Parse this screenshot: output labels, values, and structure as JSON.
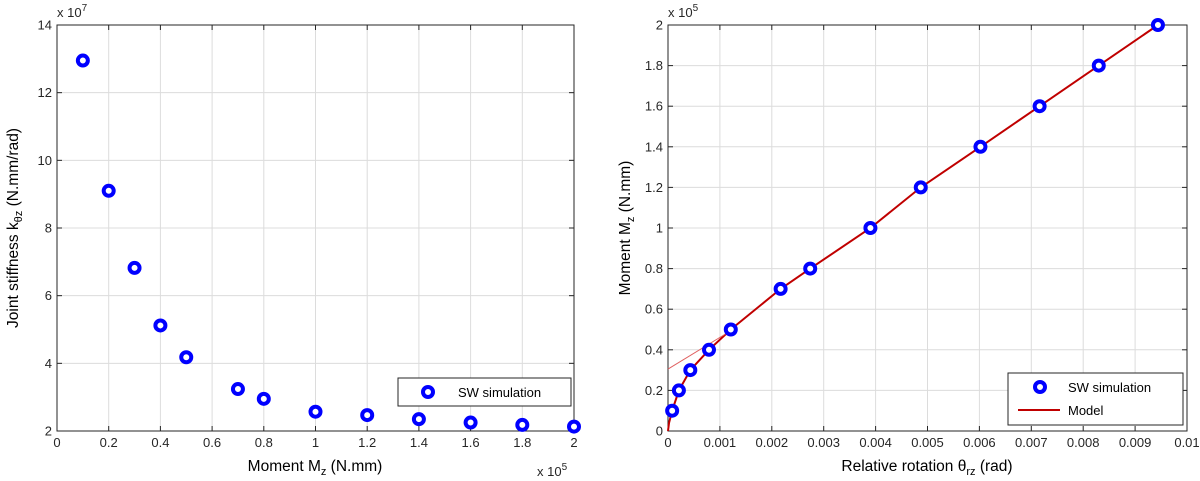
{
  "chart_data": [
    {
      "type": "scatter",
      "xlabel": "Moment M",
      "xlabel_sub": "z",
      "xlabel_unit": " (N.mm)",
      "ylabel": "Joint stiffness k",
      "ylabel_sub": "θz",
      "ylabel_unit": " (N.mm/rad)",
      "xlim": [
        0,
        200000
      ],
      "ylim": [
        20000000,
        140000000
      ],
      "x_ticks": [
        "0",
        "0.2",
        "0.4",
        "0.6",
        "0.8",
        "1",
        "1.2",
        "1.4",
        "1.6",
        "1.8",
        "2"
      ],
      "y_ticks": [
        "2",
        "4",
        "6",
        "8",
        "10",
        "12",
        "14"
      ],
      "x_exponent": "x 10",
      "x_exponent_power": "5",
      "y_exponent": "x 10",
      "y_exponent_power": "7",
      "grid": true,
      "legend_position": "bottom-right",
      "series": [
        {
          "name": "SW simulation",
          "marker": "circle",
          "color": "#0000ff",
          "x": [
            10000,
            20000,
            30000,
            40000,
            50000,
            70000,
            80000,
            100000,
            120000,
            140000,
            160000,
            180000,
            200000
          ],
          "y": [
            129500000,
            91000000,
            68200000,
            51200000,
            41800000,
            32400000,
            29500000,
            25700000,
            24700000,
            23500000,
            22500000,
            21800000,
            21300000
          ]
        }
      ]
    },
    {
      "type": "scatter",
      "xlabel": "Relative rotation  θ",
      "xlabel_sub": "rz",
      "xlabel_unit": " (rad)",
      "ylabel": "Moment M",
      "ylabel_sub": "z",
      "ylabel_unit": " (N.mm)",
      "xlim": [
        0,
        0.01
      ],
      "ylim": [
        0,
        200000
      ],
      "x_ticks": [
        "0",
        "0.001",
        "0.002",
        "0.003",
        "0.004",
        "0.005",
        "0.006",
        "0.007",
        "0.008",
        "0.009",
        "0.01"
      ],
      "y_ticks": [
        "0",
        "0.2",
        "0.4",
        "0.6",
        "0.8",
        "1",
        "1.2",
        "1.4",
        "1.6",
        "1.8",
        "2"
      ],
      "y_exponent": "x 10",
      "y_exponent_power": "5",
      "grid": true,
      "legend_position": "bottom-right",
      "series": [
        {
          "name": "SW simulation",
          "marker": "circle",
          "color": "#0000ff",
          "x": [
            8e-05,
            0.00021,
            0.00043,
            0.00079,
            0.00121,
            0.00217,
            0.00274,
            0.0039,
            0.00487,
            0.00602,
            0.00716,
            0.0083,
            0.00944
          ],
          "y": [
            10000,
            20000,
            30000,
            40000,
            50000,
            70000,
            80000,
            100000,
            120000,
            140000,
            160000,
            180000,
            200000
          ]
        },
        {
          "name": "Model",
          "marker": "line",
          "color": "#c00000",
          "x": [
            0,
            2e-05,
            8e-05,
            0.00021,
            0.00043,
            0.00079,
            0.00121,
            0.00217,
            0.00274,
            0.0039,
            0.00487,
            0.00602,
            0.00716,
            0.0083,
            0.00944
          ],
          "y": [
            0,
            4000,
            10000,
            20000,
            30000,
            40000,
            50000,
            70000,
            80000,
            100000,
            120000,
            140000,
            160000,
            180000,
            200000
          ]
        },
        {
          "marker": "thin-line",
          "color": "#e06060",
          "x": [
            0,
            0.00125
          ],
          "y": [
            30500,
            50000
          ]
        }
      ]
    }
  ]
}
